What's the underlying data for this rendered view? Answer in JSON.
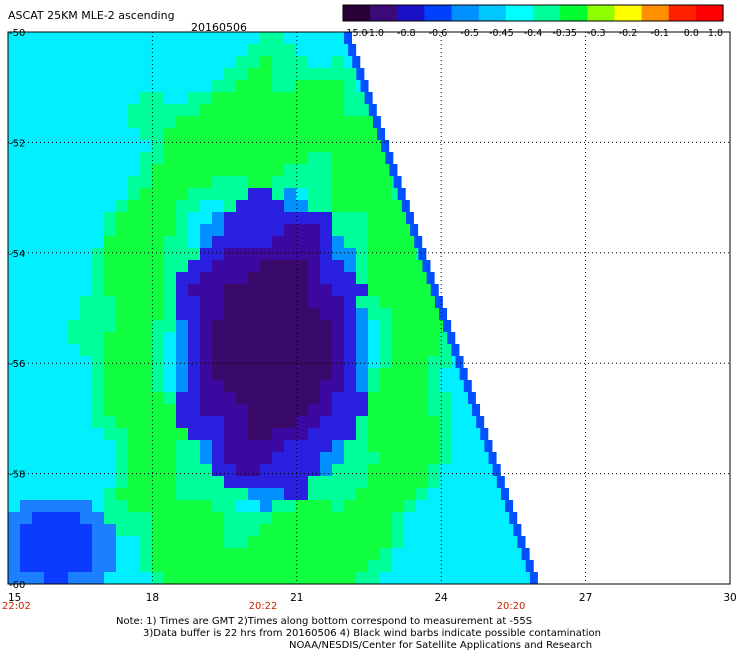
{
  "header": {
    "title": "ASCAT 25KM MLE-2 ascending",
    "date": "20160506"
  },
  "colorbar": {
    "labels": [
      "-15.0",
      "-1.0",
      "-0.8",
      "-0.6",
      "-0.5",
      "-0.45",
      "-0.4",
      "-0.35",
      "-0.3",
      "-0.2",
      "-0.1",
      "0.0",
      "1.0"
    ],
    "colors": [
      "#2a0038",
      "#3a0a78",
      "#1a10c8",
      "#0040ff",
      "#0090ff",
      "#00c8ff",
      "#00ffff",
      "#00ff9a",
      "#00ff30",
      "#90ff00",
      "#ffff00",
      "#ff9000",
      "#ff2000",
      "#ff0000"
    ]
  },
  "map": {
    "lon_range": [
      15,
      30
    ],
    "lat_range": [
      -60,
      -50
    ],
    "x_ticks": [
      "15",
      "18",
      "21",
      "24",
      "27",
      "30"
    ],
    "y_ticks": [
      "-50",
      "-52",
      "-54",
      "-56",
      "-58",
      "-60"
    ],
    "time_labels": [
      "22:02",
      "20:22",
      "20:20"
    ],
    "time_label_color": "#cc2200"
  },
  "notes": [
    "Note: 1) Times are GMT 2)Times along bottom correspond to measurement at -55S",
    "3)Data buffer is 22 hrs from 20160506 4) Black wind barbs indicate possible contamination",
    "NOAA/NESDIS/Center for Satellite Applications and Research"
  ]
}
